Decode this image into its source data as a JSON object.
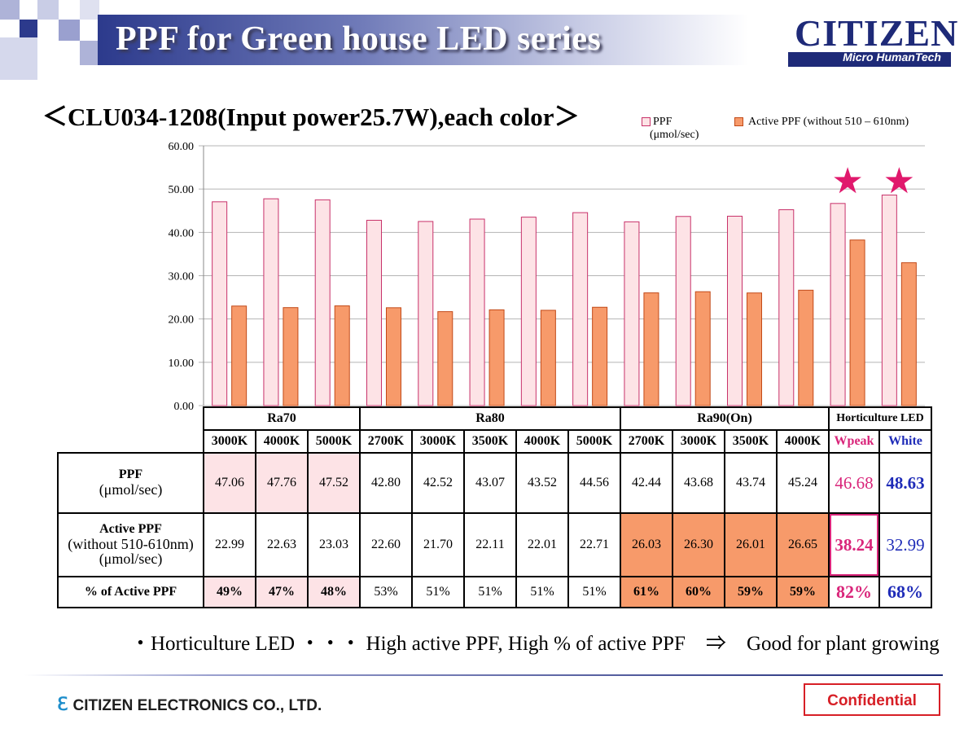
{
  "header": {
    "title": "PPF for Green house LED series"
  },
  "logo": {
    "name": "CITIZEN",
    "tagline": "Micro HumanTech"
  },
  "subtitle": "＜CLU034-1208(Input power25.7W),each color＞",
  "legend": {
    "ppf": "PPF",
    "ppf_unit": "(μmol/sec)",
    "active": "Active PPF (without 510 – 610nm)"
  },
  "colors": {
    "ppf_fill": "#fde3e6",
    "ppf_stroke": "#c8326a",
    "active_fill": "#f79a6a",
    "active_stroke": "#c24a18",
    "highlight": "#e0186c",
    "white_label": "#1f2cb8"
  },
  "chart_data": {
    "type": "bar",
    "categories": [
      "3000K",
      "4000K",
      "5000K",
      "2700K",
      "3000K",
      "3500K",
      "4000K",
      "5000K",
      "2700K",
      "3000K",
      "3500K",
      "4000K",
      "Wpeak",
      "White"
    ],
    "groups": [
      {
        "name": "Ra70",
        "span": 3
      },
      {
        "name": "Ra80",
        "span": 5
      },
      {
        "name": "Ra90(On)",
        "span": 4
      },
      {
        "name": "Horticulture LED",
        "span": 2
      }
    ],
    "series": [
      {
        "name": "PPF",
        "values": [
          47.06,
          47.76,
          47.52,
          42.8,
          42.52,
          43.07,
          43.52,
          44.56,
          42.44,
          43.68,
          43.74,
          45.24,
          46.68,
          48.63
        ]
      },
      {
        "name": "Active PPF (without 510 – 610nm)",
        "values": [
          22.99,
          22.63,
          23.03,
          22.6,
          21.7,
          22.11,
          22.01,
          22.71,
          26.03,
          26.3,
          26.01,
          26.65,
          38.24,
          32.99
        ]
      }
    ],
    "ylim": [
      0,
      60
    ],
    "yticks": [
      "0.00",
      "10.00",
      "20.00",
      "30.00",
      "40.00",
      "50.00",
      "60.00"
    ],
    "highlight_marker": "★",
    "highlight_categories": [
      12,
      13
    ]
  },
  "table": {
    "rows": [
      {
        "label": "PPF",
        "sub": "(μmol/sec)",
        "cells": [
          "47.06",
          "47.76",
          "47.52",
          "42.80",
          "42.52",
          "43.07",
          "43.52",
          "44.56",
          "42.44",
          "43.68",
          "43.74",
          "45.24",
          "46.68",
          "48.63"
        ]
      },
      {
        "label": "Active PPF",
        "sub": "(without 510-610nm)\n(μmol/sec)",
        "cells": [
          "22.99",
          "22.63",
          "23.03",
          "22.60",
          "21.70",
          "22.11",
          "22.01",
          "22.71",
          "26.03",
          "26.30",
          "26.01",
          "26.65",
          "38.24",
          "32.99"
        ]
      },
      {
        "label": "% of Active PPF",
        "sub": "",
        "cells": [
          "49%",
          "47%",
          "48%",
          "53%",
          "51%",
          "51%",
          "51%",
          "51%",
          "61%",
          "60%",
          "59%",
          "59%",
          "82%",
          "68%"
        ]
      }
    ]
  },
  "note": "・Horticulture LED ・・・ High active PPF, High % of active PPF　⇒　Good for plant growing",
  "footer": {
    "company_mark": "ℇ",
    "company": "CITIZEN ELECTRONICS CO., LTD.",
    "confidential": "Confidential"
  }
}
